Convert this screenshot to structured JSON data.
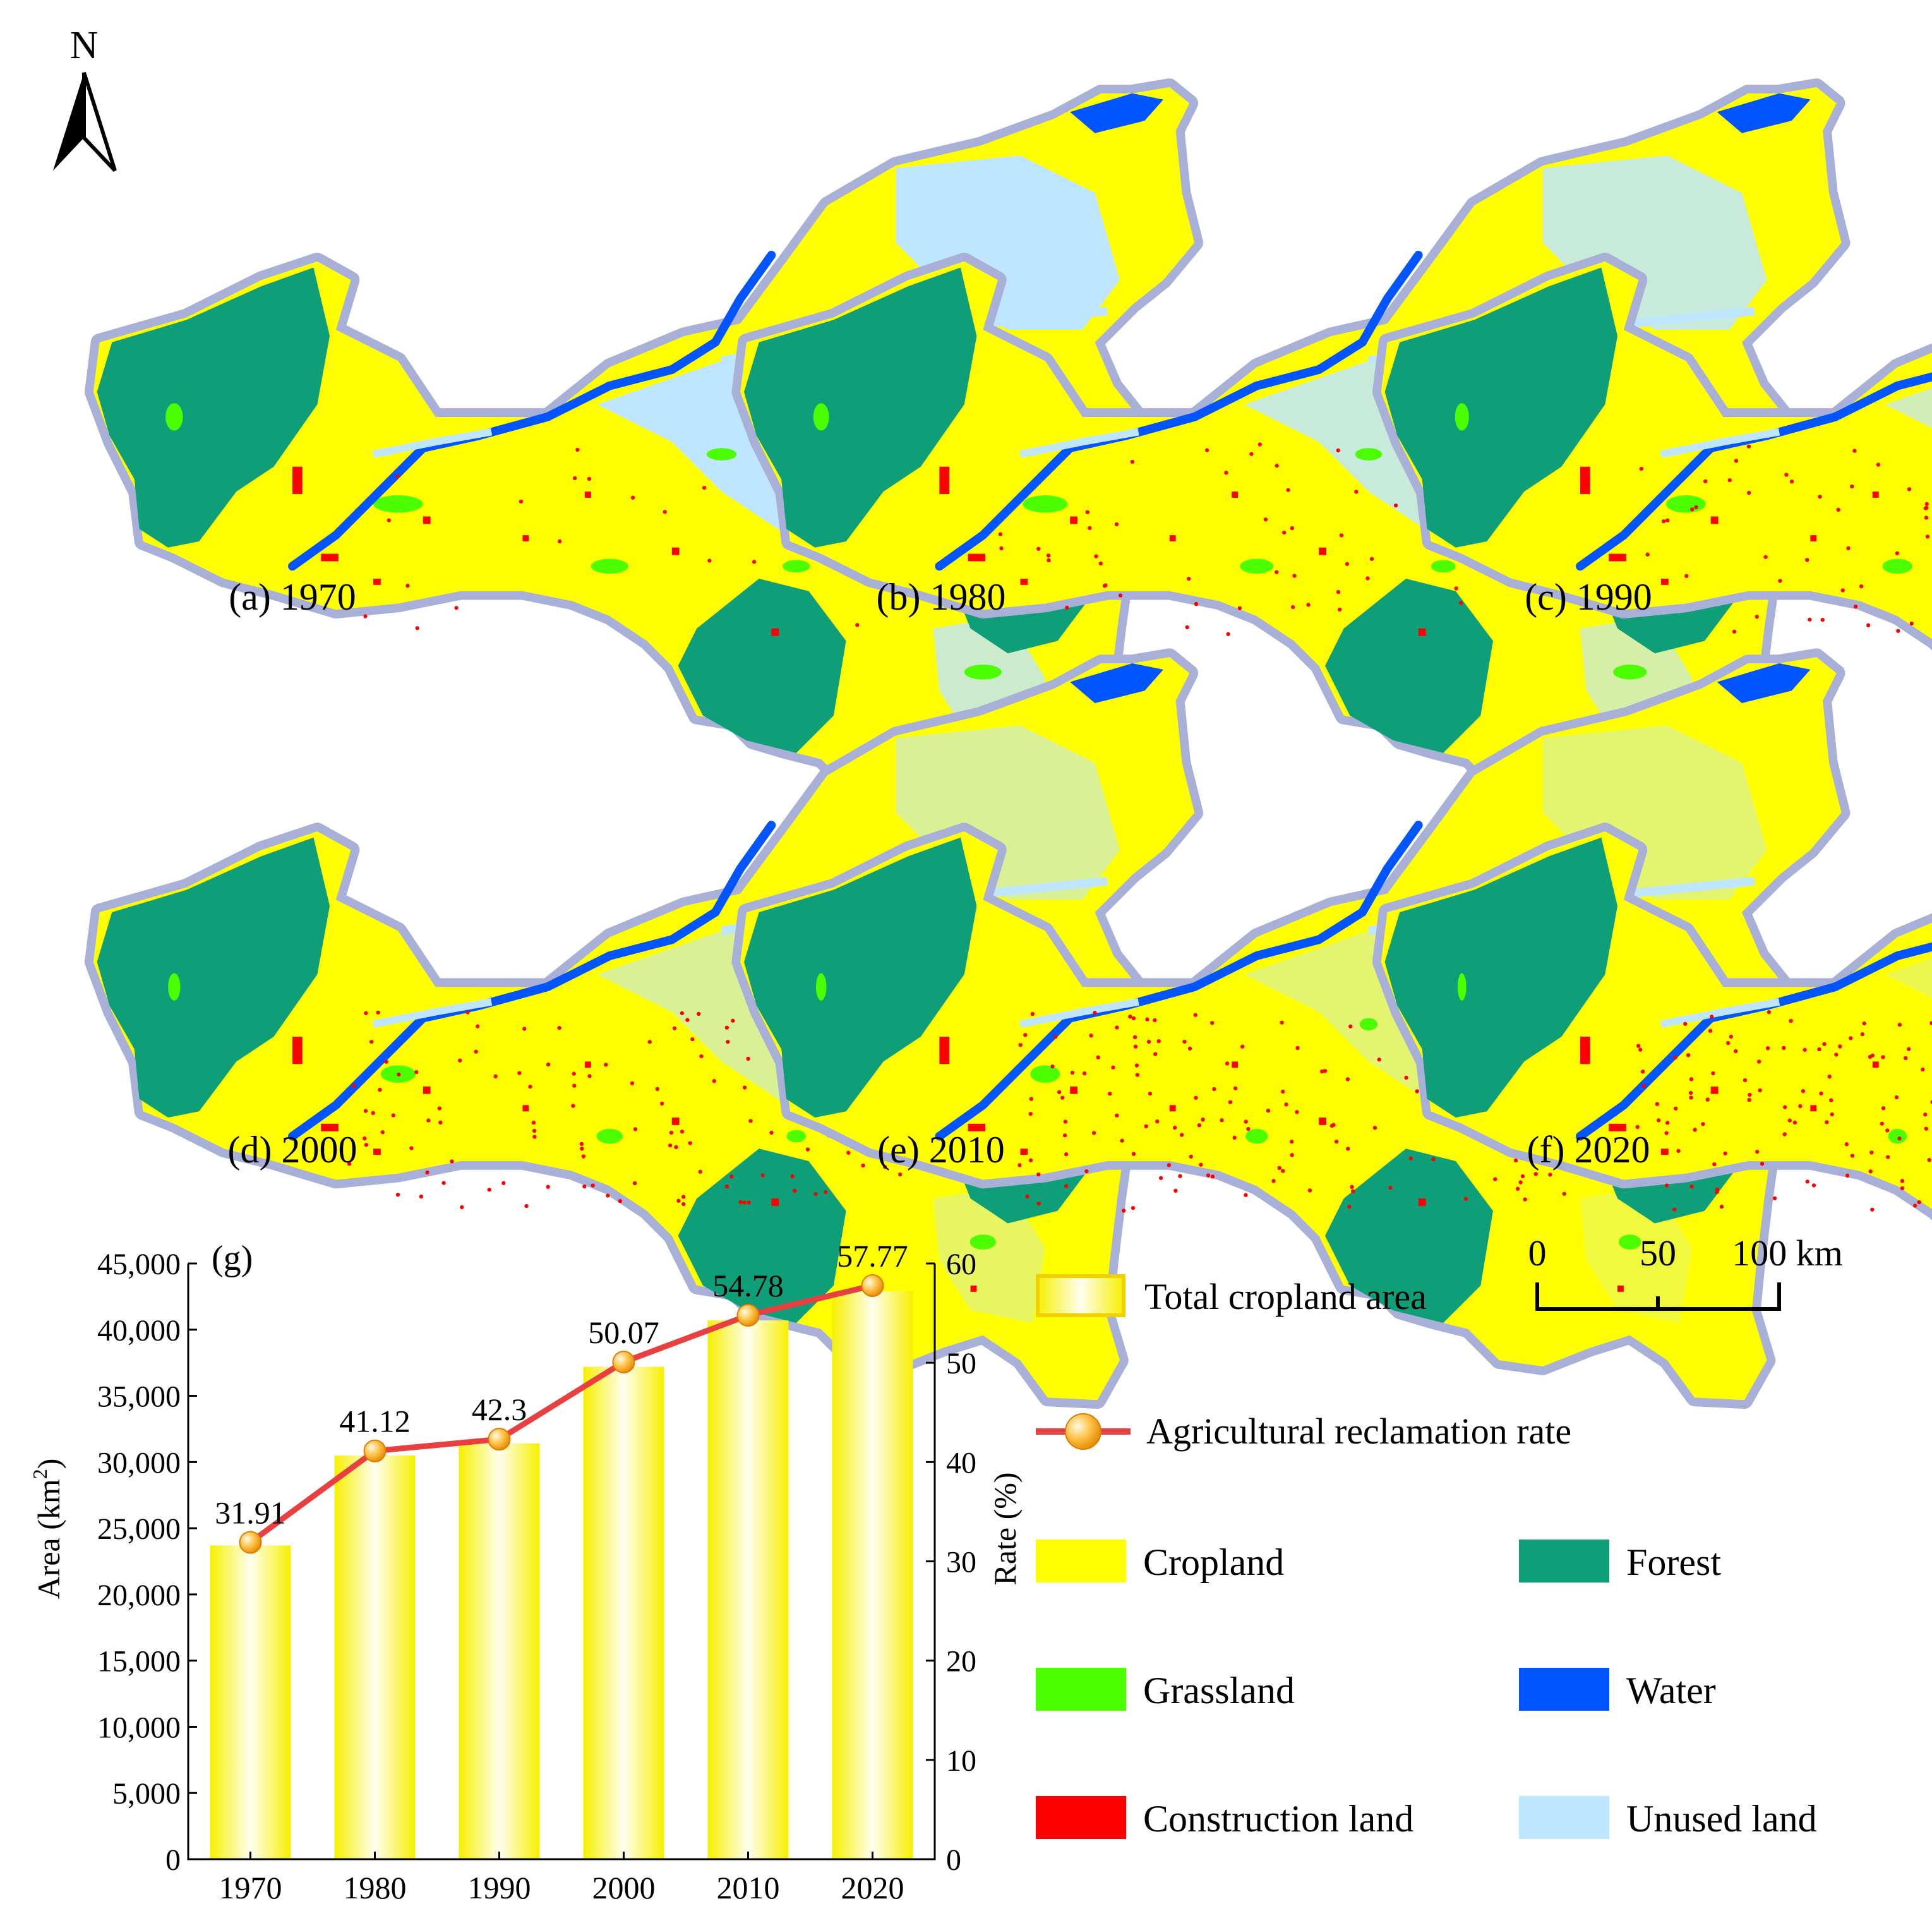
{
  "north_arrow": {
    "label": "N"
  },
  "panels": [
    {
      "id": "a",
      "label": "(a) 1970"
    },
    {
      "id": "b",
      "label": "(b) 1980"
    },
    {
      "id": "c",
      "label": "(c) 1990"
    },
    {
      "id": "d",
      "label": "(d) 2000"
    },
    {
      "id": "e",
      "label": "(e) 2010"
    },
    {
      "id": "f",
      "label": "(f) 2020"
    }
  ],
  "colors": {
    "cropland": "#ffff00",
    "forest": "#0f9f78",
    "grassland": "#4cff00",
    "water": "#0055ff",
    "construction": "#ff0000",
    "unused": "#bfe6ff",
    "boundary": "#a8b0d8",
    "line": "#e84040",
    "marker": "#f5a623"
  },
  "scale_bar": {
    "ticks": [
      "0",
      "50",
      "100 km"
    ]
  },
  "legend": {
    "bar": "Total cropland area",
    "line": "Agricultural reclamation rate",
    "classes": [
      {
        "key": "cropland",
        "label": "Cropland"
      },
      {
        "key": "forest",
        "label": "Forest"
      },
      {
        "key": "grassland",
        "label": "Grassland"
      },
      {
        "key": "water",
        "label": "Water"
      },
      {
        "key": "construction",
        "label": "Construction land"
      },
      {
        "key": "unused",
        "label": "Unused land"
      }
    ]
  },
  "chart_data": {
    "type": "bar",
    "panel_label": "(g)",
    "categories": [
      "1970",
      "1980",
      "1990",
      "2000",
      "2010",
      "2020"
    ],
    "series": [
      {
        "name": "Total cropland area",
        "axis": "left",
        "type": "bar",
        "values": [
          23700,
          30500,
          31400,
          37200,
          40700,
          42900
        ]
      },
      {
        "name": "Agricultural reclamation rate",
        "axis": "right",
        "type": "line",
        "values": [
          31.91,
          41.12,
          42.3,
          50.07,
          54.78,
          57.77
        ],
        "labels": [
          "31.91",
          "41.12",
          "42.3",
          "50.07",
          "54.78",
          "57.77"
        ]
      }
    ],
    "ylabel": "Area (km",
    "ylabel_sup": "2",
    "ylabel_close": ")",
    "y2label": "Rate (%)",
    "ylim": [
      0,
      45000
    ],
    "y2lim": [
      0,
      60
    ],
    "yticks": [
      "0",
      "5,000",
      "10,000",
      "15,000",
      "20,000",
      "25,000",
      "30,000",
      "35,000",
      "40,000",
      "45,000"
    ],
    "y2ticks": [
      "0",
      "10",
      "20",
      "30",
      "40",
      "50",
      "60"
    ],
    "grid": false
  }
}
